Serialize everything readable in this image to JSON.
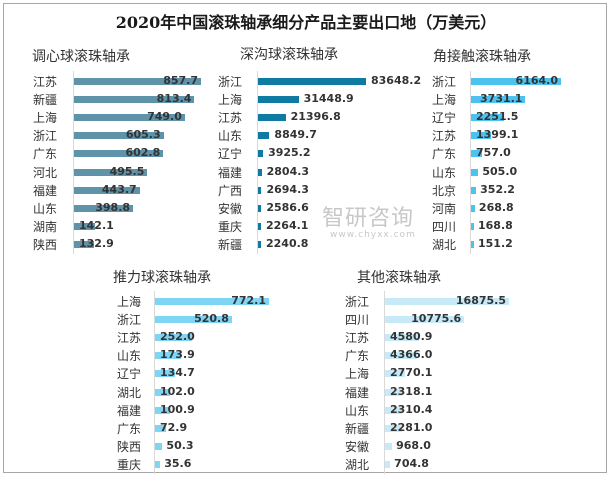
{
  "chart_data": {
    "title": "2020年中国滚珠轴承细分产品主要出口地（万美元）",
    "type": "bar",
    "charts": [
      {
        "type": "bar",
        "orientation": "horizontal",
        "title": "调心球滚珠轴承",
        "color": "#5f93a9",
        "categories": [
          "江苏",
          "新疆",
          "上海",
          "浙江",
          "广东",
          "河北",
          "福建",
          "山东",
          "湖南",
          "陕西"
        ],
        "values": [
          857.7,
          813.4,
          749.0,
          605.3,
          602.8,
          495.5,
          443.7,
          398.8,
          142.1,
          132.9
        ],
        "labels": [
          "857.7",
          "813.4",
          "749.0",
          "605.3",
          "602.8",
          "495.5",
          "443.7",
          "398.8",
          "142.1",
          "132.9"
        ]
      },
      {
        "type": "bar",
        "orientation": "horizontal",
        "title": "深沟球滚珠轴承",
        "color": "#0f7aa2",
        "categories": [
          "浙江",
          "上海",
          "江苏",
          "山东",
          "辽宁",
          "福建",
          "广西",
          "安徽",
          "重庆",
          "新疆"
        ],
        "values": [
          83648.2,
          31448.9,
          21396.8,
          8849.7,
          3925.2,
          2804.3,
          2694.3,
          2586.6,
          2264.1,
          2240.8
        ],
        "labels": [
          "83648.2",
          "31448.9",
          "21396.8",
          "8849.7",
          "3925.2",
          "2804.3",
          "2694.3",
          "2586.6",
          "2264.1",
          "2240.8"
        ]
      },
      {
        "type": "bar",
        "orientation": "horizontal",
        "title": "角接触滚珠轴承",
        "color": "#4cc2ef",
        "categories": [
          "浙江",
          "上海",
          "辽宁",
          "江苏",
          "广东",
          "山东",
          "北京",
          "河南",
          "四川",
          "湖北"
        ],
        "values": [
          6164.0,
          3731.1,
          2251.5,
          1399.1,
          757.0,
          505.0,
          352.2,
          268.8,
          168.8,
          151.2
        ],
        "labels": [
          "6164.0",
          "3731.1",
          "2251.5",
          "1399.1",
          "757.0",
          "505.0",
          "352.2",
          "268.8",
          "168.8",
          "151.2"
        ]
      },
      {
        "type": "bar",
        "orientation": "horizontal",
        "title": "推力球滚珠轴承",
        "color": "#7fd5f4",
        "categories": [
          "上海",
          "浙江",
          "江苏",
          "山东",
          "辽宁",
          "湖北",
          "福建",
          "广东",
          "陕西",
          "重庆"
        ],
        "values": [
          772.1,
          520.8,
          252.0,
          173.9,
          134.7,
          102.0,
          100.9,
          72.9,
          50.3,
          35.6
        ],
        "labels": [
          "772.1",
          "520.8",
          "252.0",
          "173.9",
          "134.7",
          "102.0",
          "100.9",
          "72.9",
          "50.3",
          "35.6"
        ]
      },
      {
        "type": "bar",
        "orientation": "horizontal",
        "title": "其他滚珠轴承",
        "color": "#c6eaf8",
        "categories": [
          "浙江",
          "四川",
          "江苏",
          "广东",
          "上海",
          "福建",
          "山东",
          "新疆",
          "安徽",
          "湖北"
        ],
        "values": [
          16875.5,
          10775.6,
          4580.9,
          4366.0,
          2770.1,
          2318.1,
          2310.4,
          2281.0,
          968.0,
          704.8
        ],
        "labels": [
          "16875.5",
          "10775.6",
          "4580.9",
          "4366.0",
          "2770.1",
          "2318.1",
          "2310.4",
          "2281.0",
          "968.0",
          "704.8"
        ]
      }
    ]
  },
  "watermark": "智研咨询",
  "watermark_url": "www.chyxx.com"
}
